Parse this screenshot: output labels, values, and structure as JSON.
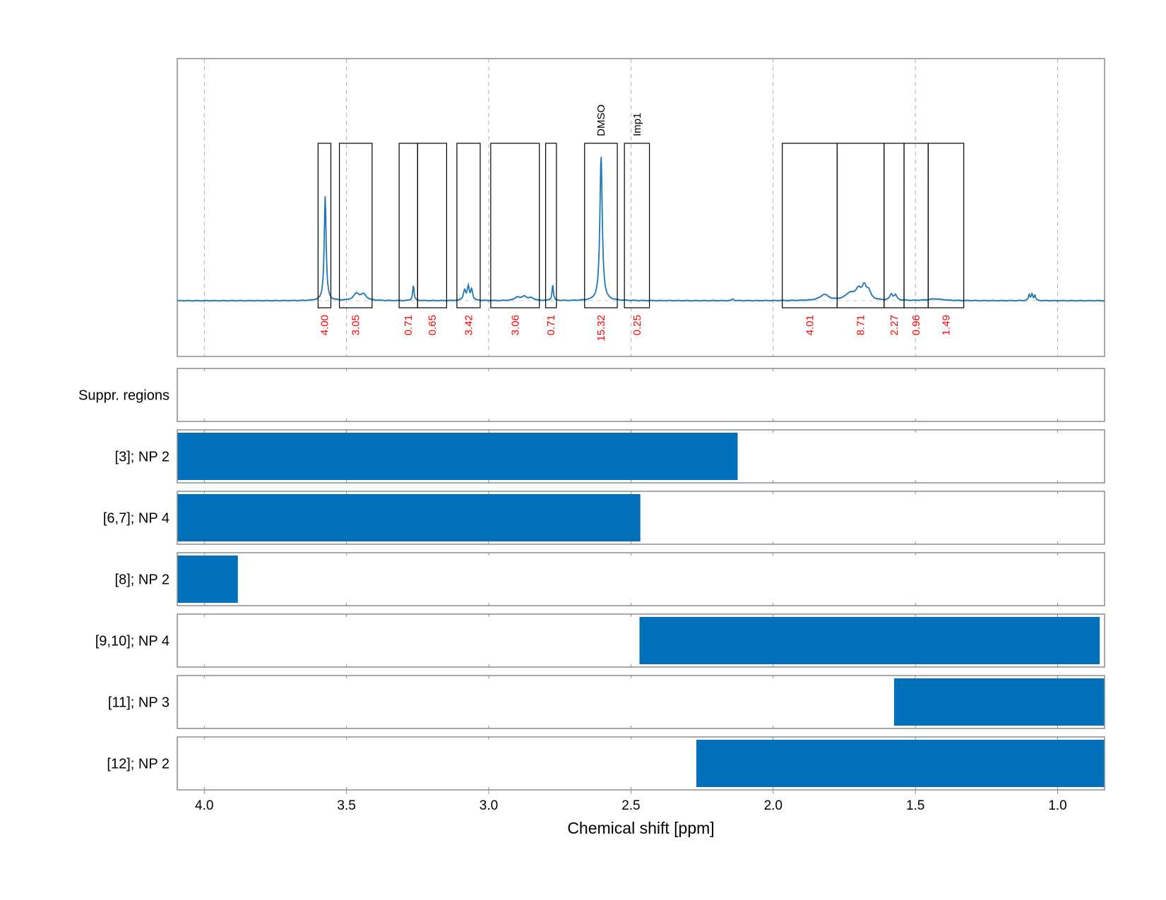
{
  "chart_data": {
    "type": "line",
    "title": "",
    "xlabel": "Chemical shift [ppm]",
    "ylabel": "",
    "xlim": [
      4.095,
      0.835
    ],
    "x_reversed": true,
    "xticks": [
      4.0,
      3.5,
      3.0,
      2.5,
      2.0,
      1.5,
      1.0
    ],
    "xtick_labels": [
      "4.0",
      "3.5",
      "3.0",
      "2.5",
      "2.0",
      "1.5",
      "1.0"
    ],
    "grid": true,
    "spectrum": {
      "baseline": 0,
      "peaks": [
        {
          "center": 3.575,
          "height": 0.62,
          "width": 0.004
        },
        {
          "center": 3.465,
          "height": 0.04,
          "width": 0.012
        },
        {
          "center": 3.44,
          "height": 0.035,
          "width": 0.012
        },
        {
          "center": 3.265,
          "height": 0.09,
          "width": 0.003
        },
        {
          "center": 3.085,
          "height": 0.06,
          "width": 0.005
        },
        {
          "center": 3.072,
          "height": 0.08,
          "width": 0.004
        },
        {
          "center": 3.06,
          "height": 0.065,
          "width": 0.004
        },
        {
          "center": 2.9,
          "height": 0.02,
          "width": 0.01
        },
        {
          "center": 2.875,
          "height": 0.025,
          "width": 0.01
        },
        {
          "center": 2.85,
          "height": 0.015,
          "width": 0.01
        },
        {
          "center": 2.775,
          "height": 0.09,
          "width": 0.003
        },
        {
          "center": 2.605,
          "height": 0.86,
          "width": 0.005
        },
        {
          "center": 2.142,
          "height": 0.012,
          "width": 0.003
        },
        {
          "center": 1.82,
          "height": 0.035,
          "width": 0.018
        },
        {
          "center": 1.73,
          "height": 0.04,
          "width": 0.02
        },
        {
          "center": 1.7,
          "height": 0.06,
          "width": 0.012
        },
        {
          "center": 1.68,
          "height": 0.07,
          "width": 0.008
        },
        {
          "center": 1.665,
          "height": 0.05,
          "width": 0.01
        },
        {
          "center": 1.585,
          "height": 0.035,
          "width": 0.006
        },
        {
          "center": 1.57,
          "height": 0.03,
          "width": 0.006
        },
        {
          "center": 1.43,
          "height": 0.01,
          "width": 0.03
        },
        {
          "center": 1.1,
          "height": 0.035,
          "width": 0.003
        },
        {
          "center": 1.09,
          "height": 0.04,
          "width": 0.003
        },
        {
          "center": 1.08,
          "height": 0.03,
          "width": 0.003
        }
      ]
    },
    "regions": [
      {
        "from": 3.6,
        "to": 3.555,
        "integral": "4.00"
      },
      {
        "from": 3.525,
        "to": 3.41,
        "integral": "3.05"
      },
      {
        "from": 3.315,
        "to": 3.25,
        "integral": "0.71"
      },
      {
        "from": 3.25,
        "to": 3.148,
        "integral": "0.65"
      },
      {
        "from": 3.112,
        "to": 3.03,
        "integral": "3.42"
      },
      {
        "from": 2.993,
        "to": 2.822,
        "integral": "3.06"
      },
      {
        "from": 2.8,
        "to": 2.762,
        "integral": "0.71"
      },
      {
        "from": 2.663,
        "to": 2.548,
        "integral": "15.32",
        "label": "DMSO"
      },
      {
        "from": 2.523,
        "to": 2.435,
        "integral": "0.25",
        "label": "Imp1"
      },
      {
        "from": 1.968,
        "to": 1.775,
        "integral": "4.01"
      },
      {
        "from": 1.775,
        "to": 1.61,
        "integral": "8.71"
      },
      {
        "from": 1.61,
        "to": 1.54,
        "integral": "2.27"
      },
      {
        "from": 1.54,
        "to": 1.455,
        "integral": "0.96"
      },
      {
        "from": 1.455,
        "to": 1.33,
        "integral": "1.49"
      }
    ],
    "tracks": [
      {
        "label": "Suppr. regions",
        "from": null,
        "to": null
      },
      {
        "label": "[3]; NP 2",
        "from": 4.095,
        "to": 2.125
      },
      {
        "label": "[6,7]; NP 4",
        "from": 4.095,
        "to": 2.467
      },
      {
        "label": "[8]; NP 2",
        "from": 4.095,
        "to": 3.882
      },
      {
        "label": "[9,10]; NP 4",
        "from": 2.47,
        "to": 0.852
      },
      {
        "label": "[11]; NP 3",
        "from": 1.575,
        "to": 0.835
      },
      {
        "label": "[12]; NP 2",
        "from": 2.27,
        "to": 0.835
      }
    ]
  }
}
